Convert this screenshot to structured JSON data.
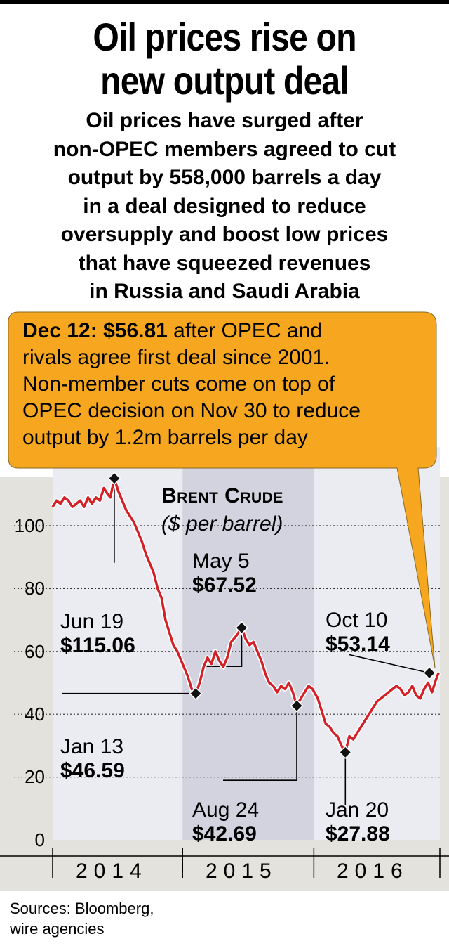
{
  "headline": {
    "line1": "Oil prices rise on",
    "line2": "new output deal"
  },
  "intro": {
    "lines": [
      "Oil prices have surged after",
      "non-OPEC members agreed to cut",
      "output by 558,000 barrels a day",
      "in a deal designed to reduce",
      "oversupply and boost low prices",
      "that have squeezed revenues",
      "in Russia and Saudi Arabia"
    ]
  },
  "callout": {
    "date": "Dec 12:",
    "price": "$56.81",
    "line1_rest": " after OPEC and",
    "line2": "rivals agree first deal since 2001.",
    "line3": "Non-member cuts come on top of",
    "line4": "OPEC decision on Nov 30 to reduce",
    "line5": "output by 1.2m barrels per day",
    "color": "#f6a71f"
  },
  "chart_data": {
    "type": "line",
    "title": "Brent Crude",
    "subtitle": "($ per barrel)",
    "ylim": [
      0,
      125
    ],
    "yticks": [
      0,
      20,
      40,
      60,
      80,
      100
    ],
    "xlim": [
      2014.0,
      2016.95
    ],
    "year_labels": [
      "2014",
      "2015",
      "2016"
    ],
    "line_color": "#d42027",
    "series": [
      {
        "x": [
          2014.0,
          2014.03,
          2014.06,
          2014.09,
          2014.12,
          2014.15,
          2014.18,
          2014.21,
          2014.24,
          2014.27,
          2014.3,
          2014.33,
          2014.36,
          2014.39,
          2014.42,
          2014.44,
          2014.47,
          2014.5,
          2014.53,
          2014.56,
          2014.59,
          2014.62,
          2014.65,
          2014.68,
          2014.71,
          2014.74,
          2014.77,
          2014.8,
          2014.83,
          2014.86,
          2014.89,
          2014.92,
          2014.95,
          2014.98,
          2015.03,
          2015.06,
          2015.09,
          2015.12,
          2015.15,
          2015.18,
          2015.21,
          2015.24,
          2015.27,
          2015.3,
          2015.33,
          2015.36,
          2015.4,
          2015.44,
          2015.47,
          2015.5,
          2015.53,
          2015.56,
          2015.59,
          2015.62,
          2015.65,
          2015.68,
          2015.71,
          2015.74,
          2015.77,
          2015.8,
          2015.83,
          2015.86,
          2015.89,
          2015.92,
          2015.95,
          2015.98,
          2016.02,
          2016.05,
          2016.08,
          2016.11,
          2016.14,
          2016.17,
          2016.2,
          2016.23,
          2016.26,
          2016.29,
          2016.32,
          2016.35,
          2016.38,
          2016.41,
          2016.44,
          2016.47,
          2016.5,
          2016.53,
          2016.56,
          2016.59,
          2016.62,
          2016.65,
          2016.68,
          2016.71,
          2016.74,
          2016.77,
          2016.8,
          2016.83,
          2016.86,
          2016.89,
          2016.92,
          2016.94
        ],
        "y": [
          106,
          108,
          107,
          109,
          108,
          106,
          107,
          108,
          106,
          109,
          107,
          109,
          108,
          112,
          110,
          109,
          115.06,
          111,
          108,
          105,
          103,
          101,
          98,
          95,
          91,
          88,
          85,
          80,
          77,
          70,
          66,
          62,
          60,
          57,
          52,
          48,
          46.59,
          50,
          55,
          58,
          56,
          60,
          57,
          55,
          58,
          63,
          65,
          67.52,
          64,
          62,
          63,
          60,
          57,
          53,
          50,
          49,
          47,
          49,
          48,
          50,
          47,
          42.69,
          45,
          47,
          49,
          48,
          45,
          41,
          37,
          36,
          34,
          33,
          30,
          27.88,
          33,
          32,
          34,
          36,
          38,
          40,
          42,
          44,
          45,
          46,
          47,
          48,
          49,
          48,
          46,
          47,
          49,
          46,
          45,
          48,
          50,
          47,
          51,
          53.14
        ]
      }
    ],
    "annotations": [
      {
        "date": "Jun 19",
        "value": "$115.06",
        "x": 2014.47,
        "y": 115.06
      },
      {
        "date": "Jan 13",
        "value": "$46.59",
        "x": 2015.09,
        "y": 46.59
      },
      {
        "date": "May 5",
        "value": "$67.52",
        "x": 2015.44,
        "y": 67.52
      },
      {
        "date": "Aug 24",
        "value": "$42.69",
        "x": 2015.86,
        "y": 42.69
      },
      {
        "date": "Jan 20",
        "value": "$27.88",
        "x": 2016.23,
        "y": 27.88
      },
      {
        "date": "Oct 10",
        "value": "$53.14",
        "x": 2016.87,
        "y": 53.14
      }
    ],
    "shading": [
      {
        "from": 2014.0,
        "to": 2014.99,
        "color": "#ebebf2"
      },
      {
        "from": 2014.99,
        "to": 2015.99,
        "color": "#d3d3df"
      },
      {
        "from": 2015.99,
        "to": 2016.95,
        "color": "#ebebf2"
      }
    ]
  },
  "footer": {
    "line1": "Sources: Bloomberg,",
    "line2": "wire agencies"
  }
}
